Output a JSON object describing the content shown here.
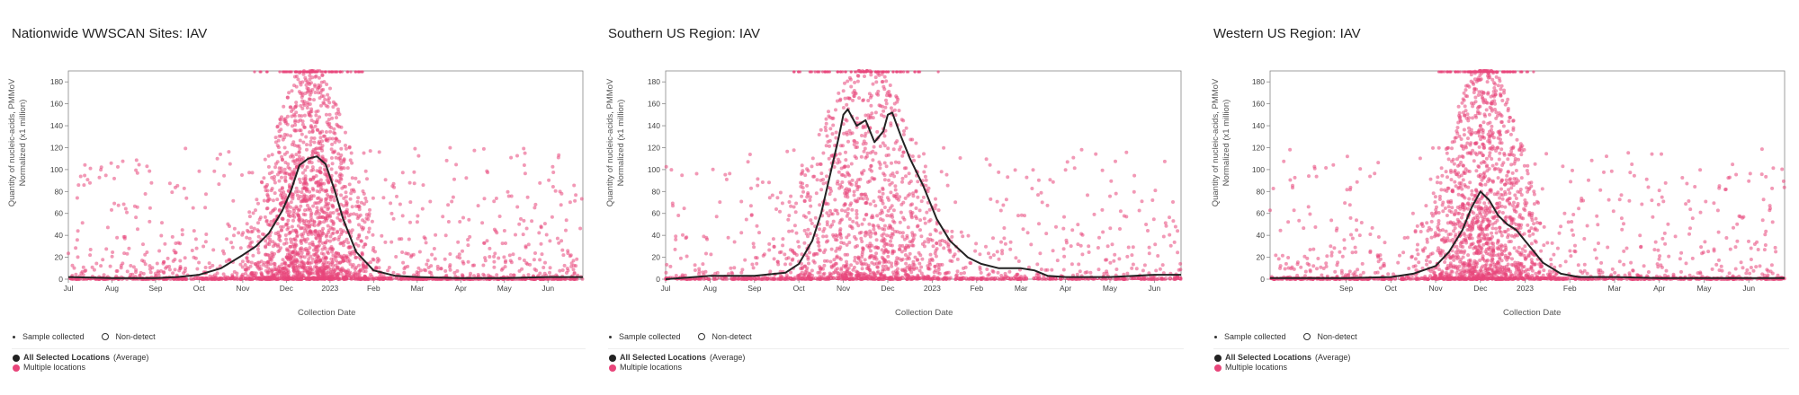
{
  "colors": {
    "points": "#e8457a",
    "average": "#222222",
    "axis": "#999999"
  },
  "legend": {
    "sample_collected": "Sample collected",
    "non_detect": "Non-detect",
    "all_selected_bold": "All Selected Locations",
    "all_selected_suffix": "(Average)",
    "multiple": "Multiple locations"
  },
  "chart_data": [
    {
      "type": "scatter",
      "title": "Nationwide WWSCAN Sites: IAV",
      "ylabel": "Quantity of nucleic-acids, PMMoV Normalized (x1 million)",
      "xlabel": "Collection Date",
      "ylim": [
        0,
        190
      ],
      "yticks": [
        0,
        20,
        40,
        60,
        80,
        100,
        120,
        140,
        160,
        180
      ],
      "xlim": [
        0,
        11.8
      ],
      "xticks": [
        {
          "v": 0,
          "t": "Jul"
        },
        {
          "v": 1,
          "t": "Aug"
        },
        {
          "v": 2,
          "t": "Sep"
        },
        {
          "v": 3,
          "t": "Oct"
        },
        {
          "v": 4,
          "t": "Nov"
        },
        {
          "v": 5,
          "t": "Dec"
        },
        {
          "v": 6,
          "t": "2023"
        },
        {
          "v": 7,
          "t": "Feb"
        },
        {
          "v": 8,
          "t": "Mar"
        },
        {
          "v": 9,
          "t": "Apr"
        },
        {
          "v": 10,
          "t": "May"
        },
        {
          "v": 11,
          "t": "Jun"
        }
      ],
      "series": [
        {
          "name": "All Selected Locations (Average)",
          "x": [
            0,
            1,
            2,
            2.5,
            3,
            3.5,
            4,
            4.3,
            4.6,
            4.9,
            5.1,
            5.3,
            5.5,
            5.7,
            5.9,
            6.1,
            6.3,
            6.6,
            7,
            7.5,
            8,
            9,
            10,
            11,
            11.8
          ],
          "y": [
            2,
            1,
            1,
            2,
            4,
            10,
            22,
            30,
            42,
            62,
            80,
            104,
            110,
            112,
            105,
            82,
            55,
            25,
            8,
            3,
            2,
            1,
            1,
            2,
            2
          ]
        }
      ],
      "scatter": {
        "n": 2600,
        "peak": 5.55,
        "spread": 0.9,
        "max": 190,
        "seed": 11
      }
    },
    {
      "type": "scatter",
      "title": "Southern US Region: IAV",
      "ylabel": "Quantity of nucleic-acids, PMMoV Normalized (x1 million)",
      "xlabel": "Collection Date",
      "ylim": [
        0,
        190
      ],
      "yticks": [
        0,
        20,
        40,
        60,
        80,
        100,
        120,
        140,
        160,
        180
      ],
      "xlim": [
        0,
        11.6
      ],
      "xticks": [
        {
          "v": 0,
          "t": "Jul"
        },
        {
          "v": 1,
          "t": "Aug"
        },
        {
          "v": 2,
          "t": "Sep"
        },
        {
          "v": 3,
          "t": "Oct"
        },
        {
          "v": 4,
          "t": "Nov"
        },
        {
          "v": 5,
          "t": "Dec"
        },
        {
          "v": 6,
          "t": "2023"
        },
        {
          "v": 7,
          "t": "Feb"
        },
        {
          "v": 8,
          "t": "Mar"
        },
        {
          "v": 9,
          "t": "Apr"
        },
        {
          "v": 10,
          "t": "May"
        },
        {
          "v": 11,
          "t": "Jun"
        }
      ],
      "series": [
        {
          "name": "All Selected Locations (Average)",
          "x": [
            0,
            1,
            2,
            2.7,
            3,
            3.3,
            3.5,
            3.7,
            3.9,
            4,
            4.1,
            4.3,
            4.5,
            4.7,
            4.9,
            5.0,
            5.1,
            5.3,
            5.5,
            5.8,
            6.1,
            6.4,
            6.8,
            7.1,
            7.5,
            8,
            8.3,
            8.6,
            9,
            10,
            11,
            11.3,
            11.6
          ],
          "y": [
            0,
            3,
            3,
            6,
            14,
            35,
            60,
            95,
            130,
            150,
            155,
            140,
            145,
            125,
            135,
            150,
            152,
            130,
            110,
            85,
            55,
            35,
            20,
            14,
            10,
            10,
            8,
            3,
            2,
            2,
            4,
            4,
            4
          ]
        }
      ],
      "scatter": {
        "n": 1800,
        "peak": 4.5,
        "spread": 1.2,
        "max": 190,
        "seed": 23
      }
    },
    {
      "type": "scatter",
      "title": "Western US Region: IAV",
      "ylabel": "Quantity of nucleic-acids, PMMoV Normalized (x1 million)",
      "xlabel": "Collection Date",
      "ylim": [
        0,
        190
      ],
      "yticks": [
        0,
        20,
        40,
        60,
        80,
        100,
        120,
        140,
        160,
        180
      ],
      "xlim": [
        0.3,
        11.8
      ],
      "xticks": [
        {
          "v": 2,
          "t": "Sep"
        },
        {
          "v": 3,
          "t": "Oct"
        },
        {
          "v": 4,
          "t": "Nov"
        },
        {
          "v": 5,
          "t": "Dec"
        },
        {
          "v": 6,
          "t": "2023"
        },
        {
          "v": 7,
          "t": "Feb"
        },
        {
          "v": 8,
          "t": "Mar"
        },
        {
          "v": 9,
          "t": "Apr"
        },
        {
          "v": 10,
          "t": "May"
        },
        {
          "v": 11,
          "t": "Jun"
        }
      ],
      "series": [
        {
          "name": "All Selected Locations (Average)",
          "x": [
            0.3,
            1,
            2,
            3,
            3.5,
            4,
            4.3,
            4.6,
            4.8,
            5.0,
            5.2,
            5.4,
            5.6,
            5.8,
            6.1,
            6.4,
            6.8,
            7.2,
            8,
            9,
            10,
            11,
            11.8
          ],
          "y": [
            1,
            1,
            1,
            2,
            5,
            12,
            25,
            45,
            65,
            80,
            72,
            58,
            50,
            45,
            30,
            15,
            5,
            2,
            2,
            1,
            1,
            1,
            1
          ]
        }
      ],
      "scatter": {
        "n": 2200,
        "peak": 5.1,
        "spread": 0.85,
        "max": 190,
        "seed": 37
      }
    }
  ]
}
